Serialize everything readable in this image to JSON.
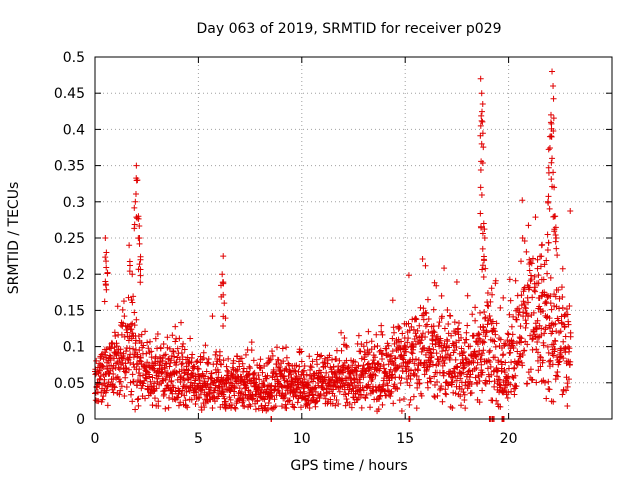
{
  "chart_data": {
    "type": "scatter",
    "title": "Day 063 of 2019, SRMTID for receiver p029",
    "xlabel": "GPS time / hours",
    "ylabel": "SRMTID / TECUs",
    "xlim": [
      0,
      25
    ],
    "ylim": [
      0,
      0.5
    ],
    "x_ticks": [
      0,
      5,
      10,
      15,
      20
    ],
    "x_tick_labels": [
      "0",
      "5",
      "10",
      "15",
      "20"
    ],
    "y_ticks": [
      0,
      0.05,
      0.1,
      0.15,
      0.2,
      0.25,
      0.3,
      0.35,
      0.4,
      0.45,
      0.5
    ],
    "y_tick_labels": [
      "0",
      "0.05",
      "0.1",
      "0.15",
      "0.2",
      "0.25",
      "0.3",
      "0.35",
      "0.4",
      "0.45",
      "0.5"
    ],
    "grid": true,
    "marker": "plus",
    "color": "#e00000",
    "baseline_level": [
      [
        0.0,
        0.045
      ],
      [
        0.5,
        0.06
      ],
      [
        1.0,
        0.07
      ],
      [
        1.5,
        0.09
      ],
      [
        2.0,
        0.075
      ],
      [
        2.5,
        0.06
      ],
      [
        3.0,
        0.055
      ],
      [
        4.0,
        0.06
      ],
      [
        5.0,
        0.045
      ],
      [
        6.0,
        0.05
      ],
      [
        7.0,
        0.045
      ],
      [
        8.0,
        0.04
      ],
      [
        9.0,
        0.045
      ],
      [
        10.0,
        0.04
      ],
      [
        11.0,
        0.045
      ],
      [
        12.0,
        0.05
      ],
      [
        13.0,
        0.055
      ],
      [
        14.0,
        0.06
      ],
      [
        15.0,
        0.08
      ],
      [
        16.0,
        0.085
      ],
      [
        17.0,
        0.075
      ],
      [
        18.0,
        0.07
      ],
      [
        19.0,
        0.09
      ],
      [
        20.0,
        0.07
      ],
      [
        21.0,
        0.14
      ],
      [
        22.0,
        0.12
      ],
      [
        23.0,
        0.09
      ]
    ],
    "spikes": [
      {
        "x": 0.5,
        "y": 0.25
      },
      {
        "x": 0.55,
        "y": 0.23
      },
      {
        "x": 0.5,
        "y": 0.19
      },
      {
        "x": 1.65,
        "y": 0.24
      },
      {
        "x": 1.8,
        "y": 0.2
      },
      {
        "x": 2.0,
        "y": 0.35
      },
      {
        "x": 2.05,
        "y": 0.33
      },
      {
        "x": 1.95,
        "y": 0.3
      },
      {
        "x": 2.1,
        "y": 0.28
      },
      {
        "x": 2.15,
        "y": 0.25
      },
      {
        "x": 2.2,
        "y": 0.22
      },
      {
        "x": 6.2,
        "y": 0.225
      },
      {
        "x": 6.15,
        "y": 0.2
      },
      {
        "x": 6.25,
        "y": 0.16
      },
      {
        "x": 18.65,
        "y": 0.47
      },
      {
        "x": 18.7,
        "y": 0.45
      },
      {
        "x": 18.75,
        "y": 0.435
      },
      {
        "x": 18.7,
        "y": 0.38
      },
      {
        "x": 18.65,
        "y": 0.32
      },
      {
        "x": 18.8,
        "y": 0.27
      },
      {
        "x": 18.85,
        "y": 0.25
      },
      {
        "x": 18.75,
        "y": 0.235
      },
      {
        "x": 22.1,
        "y": 0.48
      },
      {
        "x": 22.15,
        "y": 0.46
      },
      {
        "x": 22.05,
        "y": 0.42
      },
      {
        "x": 22.0,
        "y": 0.39
      },
      {
        "x": 22.1,
        "y": 0.36
      },
      {
        "x": 21.95,
        "y": 0.34
      },
      {
        "x": 22.2,
        "y": 0.32
      },
      {
        "x": 21.9,
        "y": 0.3
      },
      {
        "x": 22.25,
        "y": 0.28
      },
      {
        "x": 22.3,
        "y": 0.25
      },
      {
        "x": 21.6,
        "y": 0.24
      },
      {
        "x": 21.4,
        "y": 0.22
      }
    ],
    "zero_clusters": [
      8.5,
      15.2,
      19.1,
      19.2,
      19.3,
      19.7,
      19.75
    ]
  }
}
